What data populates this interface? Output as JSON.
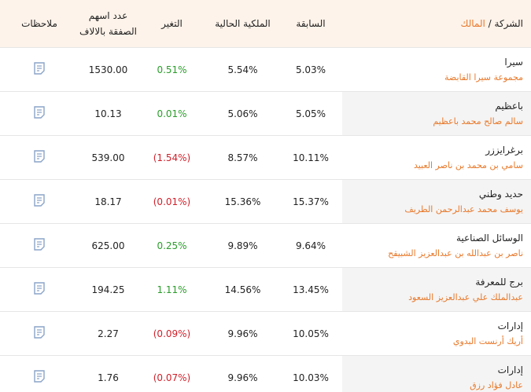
{
  "table": {
    "header": {
      "company": "الشركة /",
      "owner": "المالك",
      "previous": "السابقة",
      "current": "الملكية الحالية",
      "change": "التغير",
      "shares": [
        "عدد اسهم",
        "الصفقة بالالاف"
      ],
      "notes": "ملاحظات"
    },
    "rows": [
      {
        "company": "سيرا",
        "owner": "مجموعة سيرا القابضة",
        "previous": "5.03%",
        "current": "5.54%",
        "change": "0.51%",
        "shares": "1530.00"
      },
      {
        "company": "باعظيم",
        "owner": "سالم صالح محمد باعظيم",
        "previous": "5.05%",
        "current": "5.06%",
        "change": "0.01%",
        "shares": "10.13"
      },
      {
        "company": "برغرايززر",
        "owner": "سامي بن محمد بن ناصر العبيد",
        "previous": "10.11%",
        "current": "8.57%",
        "change": "(1.54%)",
        "shares": "539.00"
      },
      {
        "company": "حديد وطني",
        "owner": "يوسف محمد عبدالرحمن الطريف",
        "previous": "15.37%",
        "current": "15.36%",
        "change": "(0.01%)",
        "shares": "18.17"
      },
      {
        "company": "الوسائل الصناعية",
        "owner": "ناصر بن عبدالله بن عبدالعزيز الشبيقح",
        "previous": "9.64%",
        "current": "9.89%",
        "change": "0.25%",
        "shares": "625.00"
      },
      {
        "company": "برج للمعرفة",
        "owner": "عبدالملك علي عبدالعزيز السعود",
        "previous": "13.45%",
        "current": "14.56%",
        "change": "1.11%",
        "shares": "194.25"
      },
      {
        "company": "إدارات",
        "owner": "أريك أرنست البدوي",
        "previous": "10.05%",
        "current": "9.96%",
        "change": "(0.09%)",
        "shares": "2.27"
      },
      {
        "company": "إدارات",
        "owner": "عادل فؤاد رزق",
        "previous": "10.03%",
        "current": "9.96%",
        "change": "(0.07%)",
        "shares": "1.76"
      }
    ]
  }
}
